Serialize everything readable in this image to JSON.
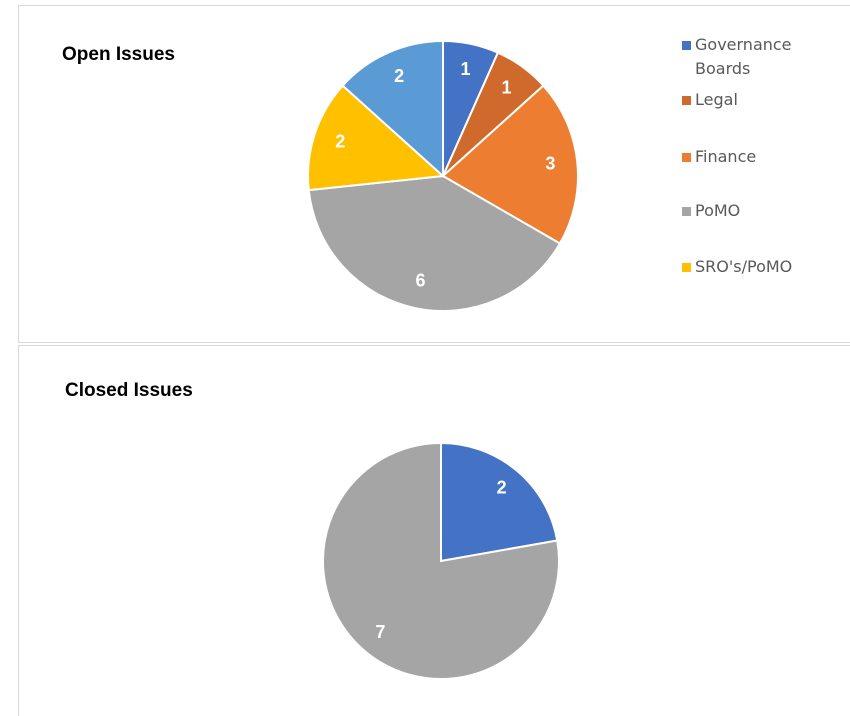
{
  "chart_data": [
    {
      "type": "pie",
      "title": "Open Issues",
      "categories": [
        "Governance Boards",
        "Legal",
        "Finance",
        "PoMO",
        "SRO's/PoMO",
        null
      ],
      "values": [
        1,
        1,
        3,
        6,
        2,
        2
      ],
      "colors": [
        "#4472c4",
        "#d0692c",
        "#ed7d31",
        "#a5a5a5",
        "#ffc000",
        "#5b9bd5"
      ],
      "legend": "right"
    },
    {
      "type": "pie",
      "title": "Closed Issues",
      "values": [
        2,
        7
      ],
      "colors": [
        "#4472c4",
        "#a5a5a5"
      ]
    }
  ]
}
